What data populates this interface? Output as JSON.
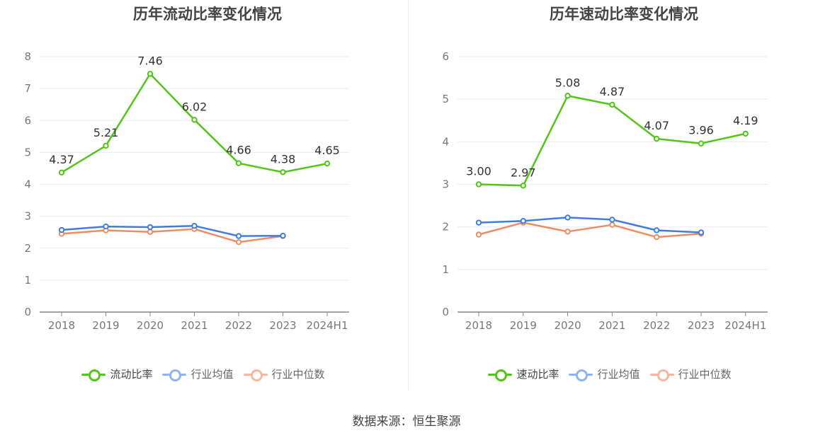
{
  "source": "数据来源：恒生聚源",
  "colors": {
    "main": "#52c41a",
    "avg": "#3f7ddf",
    "median": "#f08c63",
    "avg_legend": "#8fb2f0",
    "median_legend": "#f5b79d",
    "grid": "#e8ebf3",
    "axis": "#888888",
    "tick": "#777777",
    "label": "#333333"
  },
  "chart_data": [
    {
      "type": "line",
      "title": "历年流动比率变化情况",
      "categories": [
        "2018",
        "2019",
        "2020",
        "2021",
        "2022",
        "2023",
        "2024H1"
      ],
      "ylim": [
        0,
        8
      ],
      "yticks": [
        0,
        1,
        2,
        3,
        4,
        5,
        6,
        7,
        8
      ],
      "grid": true,
      "legend_position": "bottom",
      "series": [
        {
          "name": "流动比率",
          "key": "main",
          "values": [
            4.37,
            5.21,
            7.46,
            6.02,
            4.66,
            4.38,
            4.65
          ],
          "labels": [
            "4.37",
            "5.21",
            "7.46",
            "6.02",
            "4.66",
            "4.38",
            "4.65"
          ]
        },
        {
          "name": "行业均值",
          "key": "avg",
          "values": [
            2.57,
            2.68,
            2.66,
            2.7,
            2.38,
            2.39,
            null
          ]
        },
        {
          "name": "行业中位数",
          "key": "median",
          "values": [
            2.45,
            2.56,
            2.51,
            2.6,
            2.19,
            2.38,
            null
          ]
        }
      ]
    },
    {
      "type": "line",
      "title": "历年速动比率变化情况",
      "categories": [
        "2018",
        "2019",
        "2020",
        "2021",
        "2022",
        "2023",
        "2024H1"
      ],
      "ylim": [
        0,
        6
      ],
      "yticks": [
        0,
        1,
        2,
        3,
        4,
        5,
        6
      ],
      "grid": true,
      "legend_position": "bottom",
      "series": [
        {
          "name": "速动比率",
          "key": "main",
          "values": [
            3.0,
            2.97,
            5.08,
            4.87,
            4.07,
            3.96,
            4.19
          ],
          "labels": [
            "3.00",
            "2.97",
            "5.08",
            "4.87",
            "4.07",
            "3.96",
            "4.19"
          ]
        },
        {
          "name": "行业均值",
          "key": "avg",
          "values": [
            2.1,
            2.14,
            2.22,
            2.17,
            1.92,
            1.87,
            null
          ]
        },
        {
          "name": "行业中位数",
          "key": "median",
          "values": [
            1.82,
            2.1,
            1.89,
            2.05,
            1.76,
            1.84,
            null
          ]
        }
      ]
    }
  ]
}
